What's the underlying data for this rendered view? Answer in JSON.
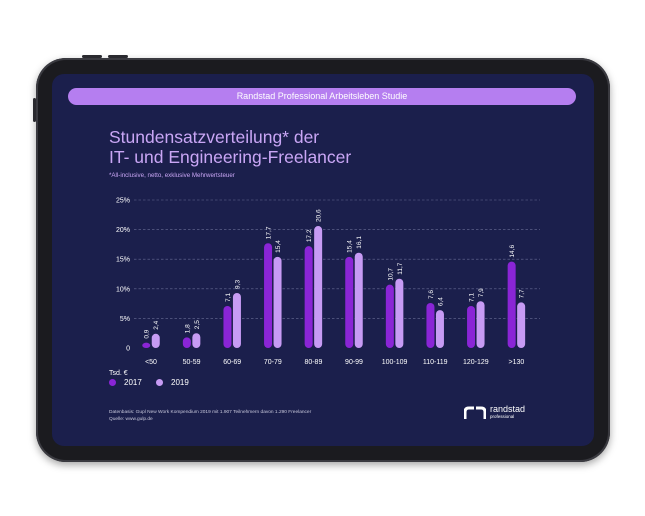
{
  "banner": "Randstad Professional Arbeitsleben Studie",
  "title_line1": "Stundensatzverteilung* der",
  "title_line2": "IT- und Engineering-Freelancer",
  "subtitle": "*All-inclusive, netto, exklusive Mehrwertsteuer",
  "x_unit_label": "Tsd. €",
  "legend": [
    {
      "label": "2017",
      "color": "#8a25d6"
    },
    {
      "label": "2019",
      "color": "#c79bf4"
    }
  ],
  "footer": {
    "line1": "Datenbasis: Gupl New Work Kompendium 2019 mit 1.907 Teilnehmern davon 1.290 Freelancer",
    "line2": "Quelle: www.gulp.de"
  },
  "logo": {
    "brand": "randstad",
    "sub": "professional"
  },
  "colors": {
    "screen": "#1b1f4c",
    "bar2017": "#8a25d6",
    "bar2019": "#c79bf4",
    "grid": "#6a6e96"
  },
  "chart_data": {
    "type": "bar",
    "title": "Stundensatzverteilung* der IT- und Engineering-Freelancer",
    "xlabel": "Tsd. €",
    "ylabel": "",
    "ylim": [
      0,
      25
    ],
    "y_ticks": [
      "0",
      "5%",
      "10%",
      "15%",
      "20%",
      "25%"
    ],
    "y_tick_values": [
      0,
      5,
      10,
      15,
      20,
      25
    ],
    "categories": [
      "<50",
      "50-59",
      "60-69",
      "70-79",
      "80-89",
      "90-99",
      "100-109",
      "110-119",
      "120-129",
      ">130"
    ],
    "series": [
      {
        "name": "2017",
        "values": [
          0.9,
          1.8,
          7.1,
          17.7,
          17.2,
          15.4,
          10.7,
          7.6,
          7.1,
          14.6
        ],
        "labels": [
          "0,9",
          "1,8",
          "7,1",
          "17,7",
          "17,2",
          "15,4",
          "10,7",
          "7,6",
          "7,1",
          "14,6"
        ]
      },
      {
        "name": "2019",
        "values": [
          2.4,
          2.5,
          9.3,
          15.4,
          20.6,
          16.1,
          11.7,
          6.4,
          7.9,
          7.7
        ],
        "labels": [
          "2,4",
          "2,5",
          "9,3",
          "15,4",
          "20,6",
          "16,1",
          "11,7",
          "6,4",
          "7,9",
          "7,7"
        ]
      }
    ]
  }
}
